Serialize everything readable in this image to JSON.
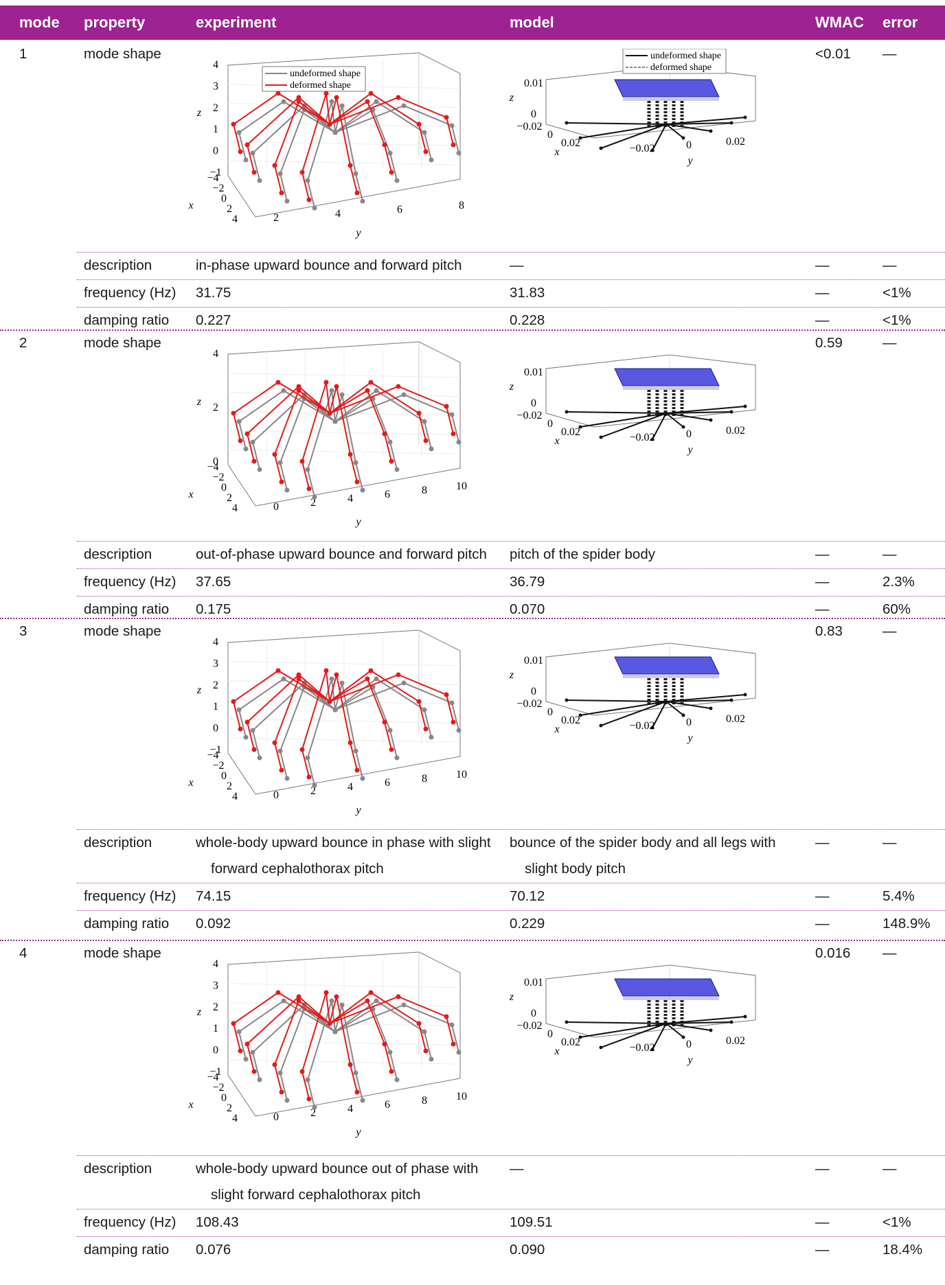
{
  "header": {
    "mode": "mode",
    "property": "property",
    "experiment": "experiment",
    "model": "model",
    "wmac": "WMAC",
    "error": "error"
  },
  "colors": {
    "header_bg": "#9c2391",
    "deformed": "#e41a1c",
    "undeformed": "#888888",
    "plate": "#3b3bdc"
  },
  "legend": {
    "undeformed": "undeformed shape",
    "deformed": "deformed shape"
  },
  "plot_axes": {
    "x": "x",
    "y": "y",
    "z": "z"
  },
  "modes": [
    {
      "mode": "1",
      "shape_label": "mode shape",
      "wmac": "<0.01",
      "shape_error": "—",
      "exp_plot": {
        "z_ticks": [
          "4",
          "3",
          "2",
          "1",
          "0",
          "−1"
        ],
        "x_ticks": [
          "−4",
          "−2",
          "0",
          "2",
          "4"
        ],
        "y_ticks": [
          "2",
          "4",
          "6",
          "8"
        ]
      },
      "model_plot": {
        "z_ticks": [
          "0.01",
          "0"
        ],
        "x_ticks": [
          "−0.02",
          "0",
          "0.02"
        ],
        "y_ticks": [
          "−0.02",
          "0",
          "0.02"
        ]
      },
      "description": {
        "label": "description",
        "exp": [
          "in-phase upward bounce and forward pitch"
        ],
        "model": [
          "—"
        ],
        "wmac": "—",
        "error": "—"
      },
      "frequency": {
        "label": "frequency (Hz)",
        "exp": "31.75",
        "model": "31.83",
        "wmac": "—",
        "error": "<1%"
      },
      "damping": {
        "label": "damping ratio",
        "exp": "0.227",
        "model": "0.228",
        "wmac": "—",
        "error": "<1%"
      }
    },
    {
      "mode": "2",
      "shape_label": "mode shape",
      "wmac": "0.59",
      "shape_error": "—",
      "exp_plot": {
        "z_ticks": [
          "4",
          "2",
          "0"
        ],
        "x_ticks": [
          "−4",
          "−2",
          "0",
          "2",
          "4"
        ],
        "y_ticks": [
          "0",
          "2",
          "4",
          "6",
          "8",
          "10"
        ]
      },
      "model_plot": {
        "z_ticks": [
          "0.01",
          "0"
        ],
        "x_ticks": [
          "−0.02",
          "0",
          "0.02"
        ],
        "y_ticks": [
          "−0.02",
          "0",
          "0.02"
        ]
      },
      "description": {
        "label": "description",
        "exp": [
          "out-of-phase upward bounce and forward pitch"
        ],
        "model": [
          "pitch of the spider body"
        ],
        "wmac": "—",
        "error": "—"
      },
      "frequency": {
        "label": "frequency (Hz)",
        "exp": "37.65",
        "model": "36.79",
        "wmac": "—",
        "error": "2.3%"
      },
      "damping": {
        "label": "damping ratio",
        "exp": "0.175",
        "model": "0.070",
        "wmac": "—",
        "error": "60%"
      }
    },
    {
      "mode": "3",
      "shape_label": "mode shape",
      "wmac": "0.83",
      "shape_error": "—",
      "exp_plot": {
        "z_ticks": [
          "4",
          "3",
          "2",
          "1",
          "0",
          "−1"
        ],
        "x_ticks": [
          "−4",
          "−2",
          "0",
          "2",
          "4"
        ],
        "y_ticks": [
          "0",
          "2",
          "4",
          "6",
          "8",
          "10"
        ]
      },
      "model_plot": {
        "z_ticks": [
          "0.01",
          "0"
        ],
        "x_ticks": [
          "−0.02",
          "0",
          "0.02"
        ],
        "y_ticks": [
          "−0.02",
          "0",
          "0.02"
        ]
      },
      "description": {
        "label": "description",
        "exp": [
          "whole-body upward bounce in phase with slight",
          "forward cephalothorax pitch"
        ],
        "model": [
          "bounce of the spider body and all legs with",
          "slight body pitch"
        ],
        "wmac": "—",
        "error": "—"
      },
      "frequency": {
        "label": "frequency (Hz)",
        "exp": "74.15",
        "model": "70.12",
        "wmac": "—",
        "error": "5.4%"
      },
      "damping": {
        "label": "damping ratio",
        "exp": "0.092",
        "model": "0.229",
        "wmac": "—",
        "error": "148.9%"
      }
    },
    {
      "mode": "4",
      "shape_label": "mode shape",
      "wmac": "0.016",
      "shape_error": "—",
      "exp_plot": {
        "z_ticks": [
          "4",
          "3",
          "2",
          "1",
          "0",
          "−1"
        ],
        "x_ticks": [
          "−4",
          "−2",
          "0",
          "2",
          "4"
        ],
        "y_ticks": [
          "0",
          "2",
          "4",
          "6",
          "8",
          "10"
        ]
      },
      "model_plot": {
        "z_ticks": [
          "0.01",
          "0"
        ],
        "x_ticks": [
          "−0.02",
          "0",
          "0.02"
        ],
        "y_ticks": [
          "−0.02",
          "0",
          "0.02"
        ]
      },
      "description": {
        "label": "description",
        "exp": [
          "whole-body upward bounce out of phase with",
          "slight forward cephalothorax pitch"
        ],
        "model": [
          "—"
        ],
        "wmac": "—",
        "error": "—"
      },
      "frequency": {
        "label": "frequency (Hz)",
        "exp": "108.43",
        "model": "109.51",
        "wmac": "—",
        "error": "<1%"
      },
      "damping": {
        "label": "damping ratio",
        "exp": "0.076",
        "model": "0.090",
        "wmac": "—",
        "error": "18.4%"
      }
    }
  ]
}
